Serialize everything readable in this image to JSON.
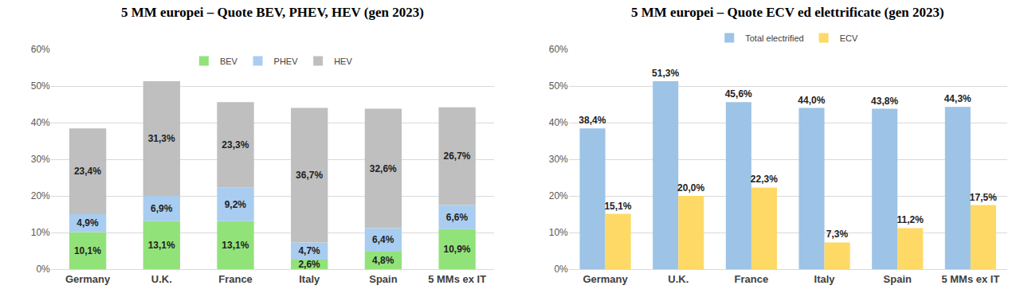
{
  "chart_data": [
    {
      "type": "bar",
      "title": "5 MM europei – Quote BEV, PHEV, HEV (gen 2023)",
      "categories": [
        "Germany",
        "U.K.",
        "France",
        "Italy",
        "Spain",
        "5 MMs ex IT"
      ],
      "series": [
        {
          "name": "BEV",
          "color": "#92e27a",
          "values": [
            10.1,
            13.1,
            13.1,
            2.6,
            4.8,
            10.9
          ],
          "value_labels": [
            "10,1%",
            "13,1%",
            "13,1%",
            "2,6%",
            "4,8%",
            "10,9%"
          ]
        },
        {
          "name": "PHEV",
          "color": "#a9cdf0",
          "values": [
            4.9,
            6.9,
            9.2,
            4.7,
            6.4,
            6.6
          ],
          "value_labels": [
            "4,9%",
            "6,9%",
            "9,2%",
            "4,7%",
            "6,4%",
            "6,6%"
          ]
        },
        {
          "name": "HEV",
          "color": "#bfbfbf",
          "values": [
            23.4,
            31.3,
            23.3,
            36.7,
            32.6,
            26.7
          ],
          "value_labels": [
            "23,4%",
            "31,3%",
            "23,3%",
            "36,7%",
            "32,6%",
            "26,7%"
          ]
        }
      ],
      "ylim": [
        0,
        60
      ],
      "yticks": [
        {
          "value": 0,
          "label": "0%"
        },
        {
          "value": 10,
          "label": "10%"
        },
        {
          "value": 20,
          "label": "20%"
        },
        {
          "value": 30,
          "label": "30%"
        },
        {
          "value": 40,
          "label": "40%"
        },
        {
          "value": 50,
          "label": "50%"
        },
        {
          "value": 60,
          "label": "60%"
        }
      ],
      "grid": true,
      "legend": "top",
      "stacked": true,
      "data_labels": true
    },
    {
      "type": "bar",
      "title": "5 MM europei – Quote ECV ed elettrificate (gen 2023)",
      "categories": [
        "Germany",
        "U.K.",
        "France",
        "Italy",
        "Spain",
        "5 MMs ex IT"
      ],
      "series": [
        {
          "name": "Total electrified",
          "color": "#9dc3e6",
          "values": [
            38.4,
            51.3,
            45.6,
            44.0,
            43.8,
            44.3
          ],
          "value_labels": [
            "38,4%",
            "51,3%",
            "45,6%",
            "44,0%",
            "43,8%",
            "44,3%"
          ]
        },
        {
          "name": "ECV",
          "color": "#ffd966",
          "values": [
            15.1,
            20.0,
            22.3,
            7.3,
            11.2,
            17.5
          ],
          "value_labels": [
            "15,1%",
            "20,0%",
            "22,3%",
            "7,3%",
            "11,2%",
            "17,5%"
          ]
        }
      ],
      "ylim": [
        0,
        60
      ],
      "yticks": [
        {
          "value": 0,
          "label": "0%"
        },
        {
          "value": 10,
          "label": "10%"
        },
        {
          "value": 20,
          "label": "20%"
        },
        {
          "value": 30,
          "label": "30%"
        },
        {
          "value": 40,
          "label": "40%"
        },
        {
          "value": 50,
          "label": "50%"
        },
        {
          "value": 60,
          "label": "60%"
        }
      ],
      "grid": true,
      "legend": "top",
      "stacked": false,
      "data_labels": true
    }
  ]
}
